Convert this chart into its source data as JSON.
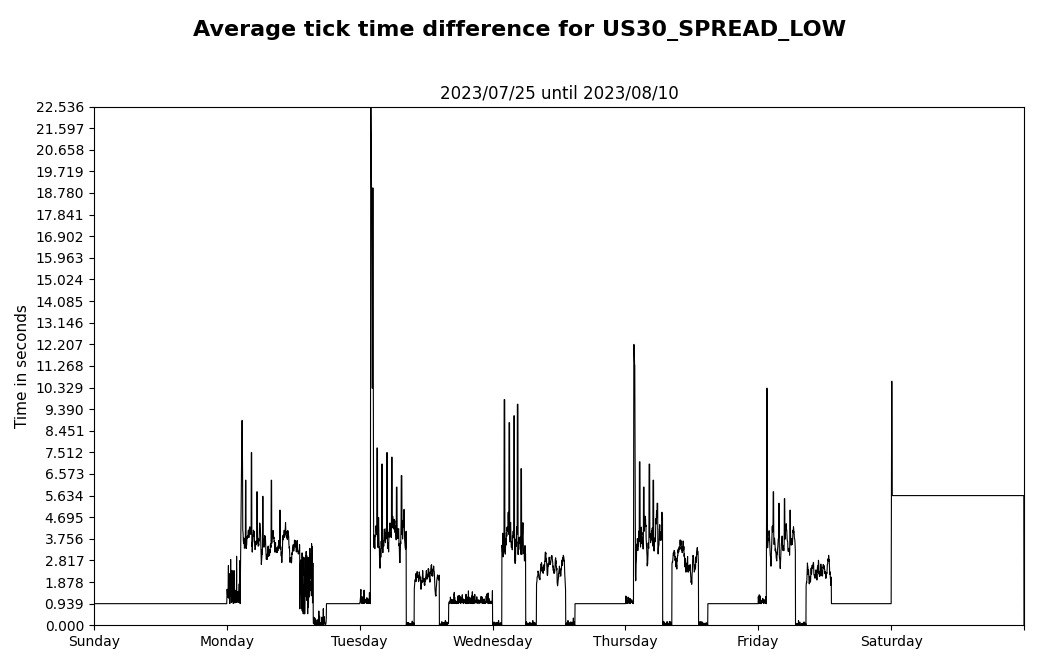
{
  "title": "Average tick time difference for US30_SPREAD_LOW",
  "subtitle": "2023/07/25 until 2023/08/10",
  "ylabel": "Time in seconds",
  "background_color": "#ffffff",
  "line_color": "#000000",
  "line_width": 0.8,
  "yticks": [
    0.0,
    0.939,
    1.878,
    2.817,
    3.756,
    4.695,
    5.634,
    6.573,
    7.512,
    8.451,
    9.39,
    10.329,
    11.268,
    12.207,
    13.146,
    14.085,
    15.024,
    15.963,
    16.902,
    17.841,
    18.78,
    19.719,
    20.658,
    21.597,
    22.536
  ],
  "ylim": [
    0.0,
    22.536
  ],
  "xtick_labels": [
    "Sunday",
    "Monday",
    "Tuesday",
    "Wednesday",
    "Thursday",
    "Friday",
    "Saturday"
  ],
  "title_fontsize": 16,
  "subtitle_fontsize": 12,
  "axis_fontsize": 11,
  "tick_fontsize": 10
}
